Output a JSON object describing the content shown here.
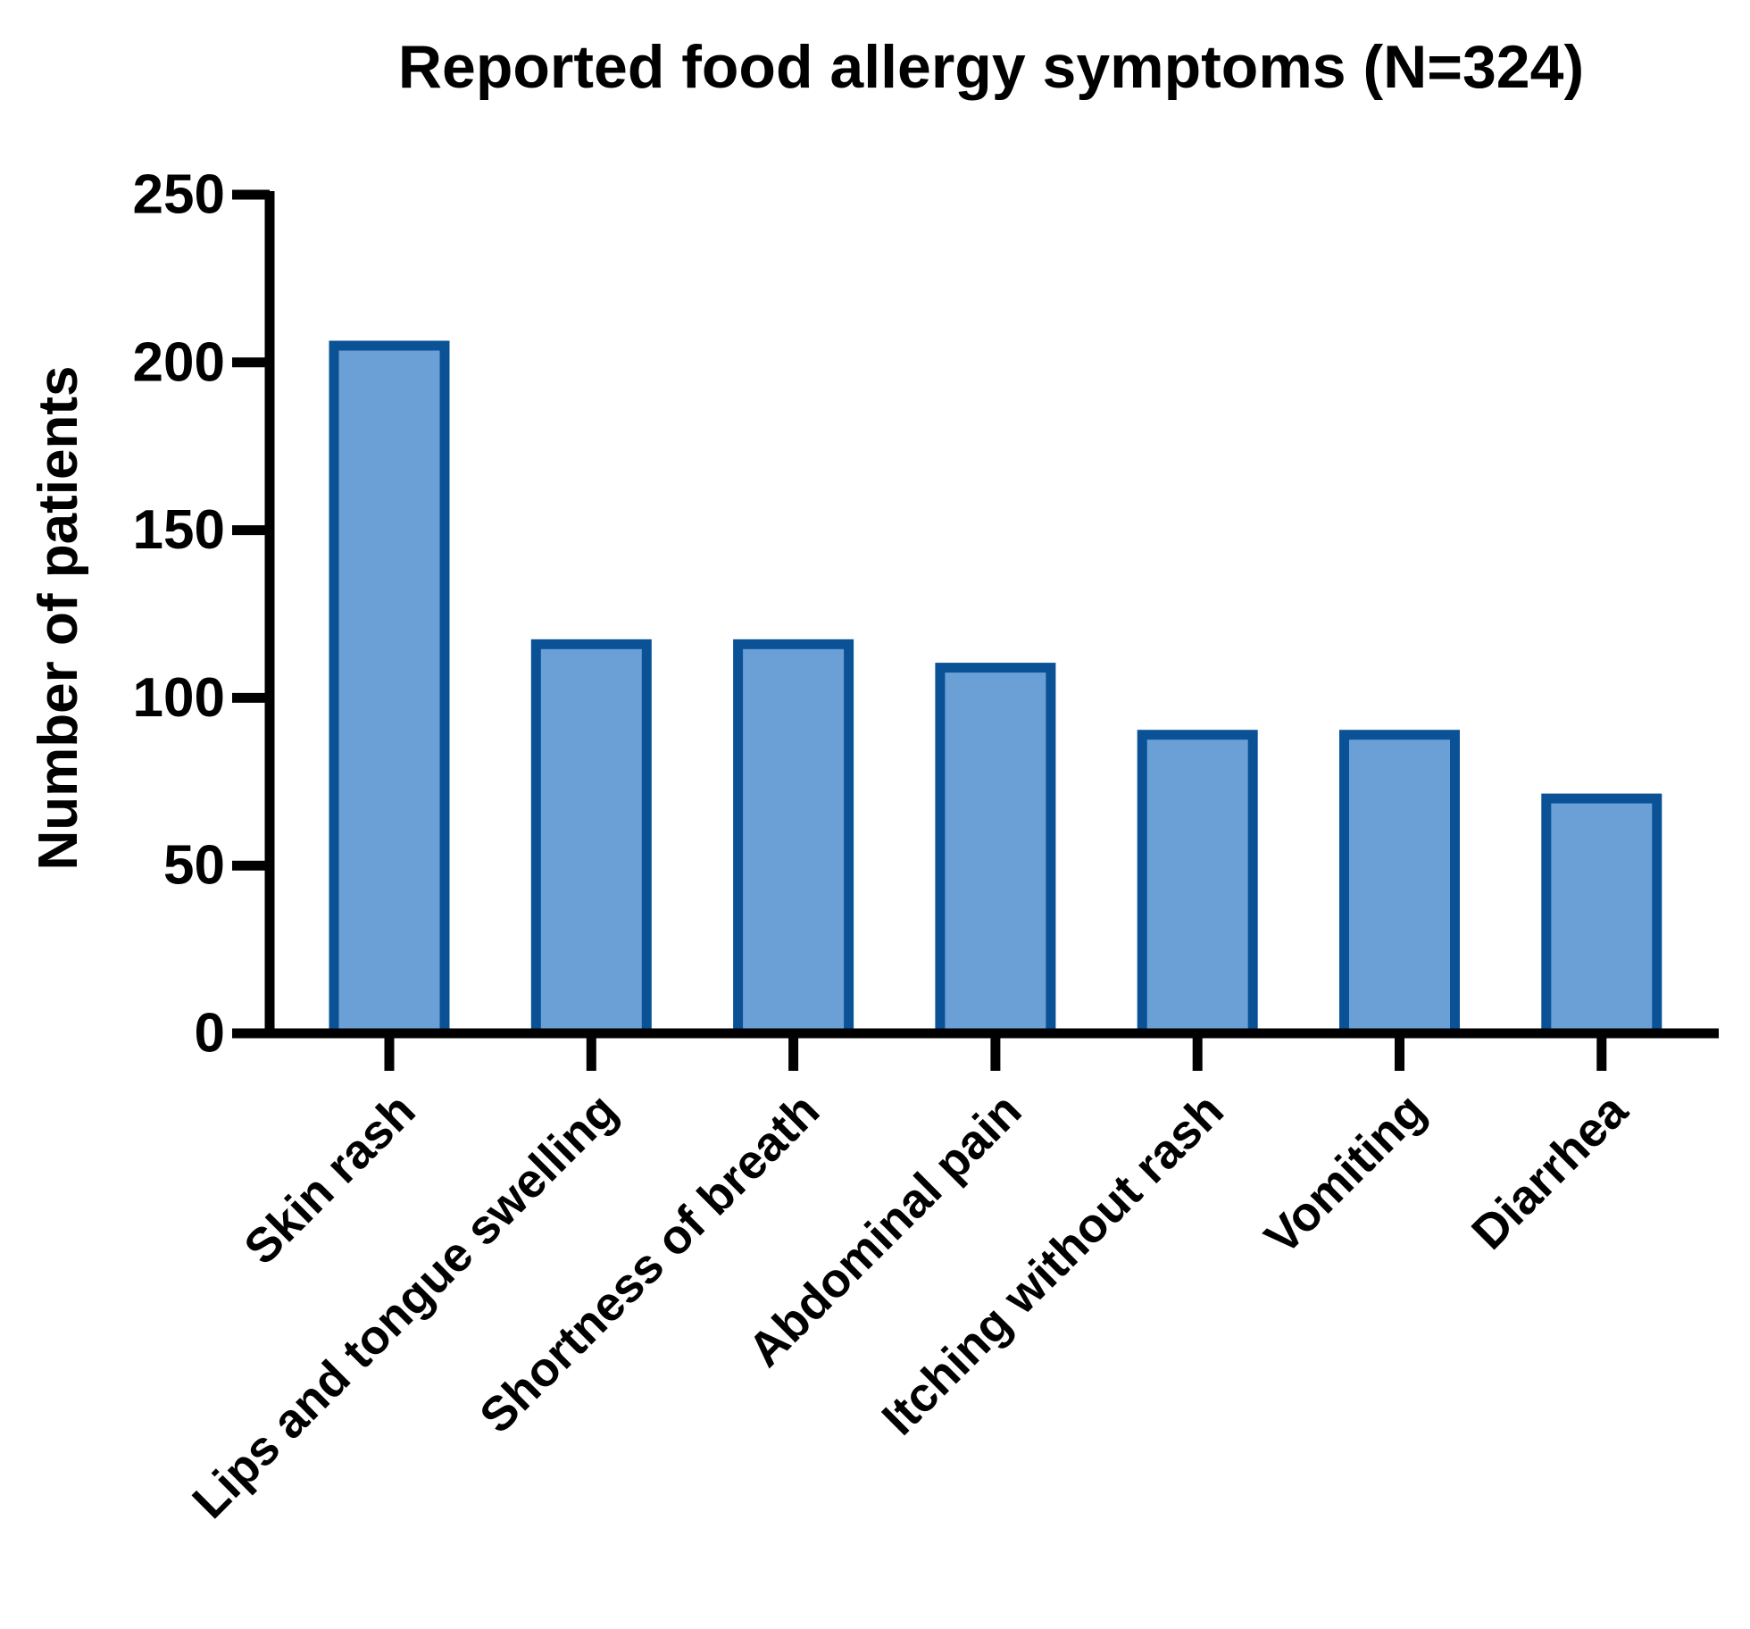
{
  "chart_data": {
    "type": "bar",
    "title": "Reported food allergy symptoms (N=324)",
    "xlabel": "",
    "ylabel": "Number of patients",
    "categories": [
      "Skin rash",
      "Lips and tongue swelling",
      "Shortness of breath",
      "Abdominal pain",
      "Itching without rash",
      "Vomiting",
      "Diarrhea"
    ],
    "values": [
      205,
      116,
      116,
      109,
      89,
      89,
      70
    ],
    "ylim": [
      0,
      250
    ],
    "yticks": [
      0,
      50,
      100,
      150,
      200,
      250
    ],
    "grid": false,
    "legend": "none",
    "colors": {
      "bar_fill": "#6aa0d6",
      "bar_edge": "#0a5196",
      "axis": "#000000"
    }
  }
}
